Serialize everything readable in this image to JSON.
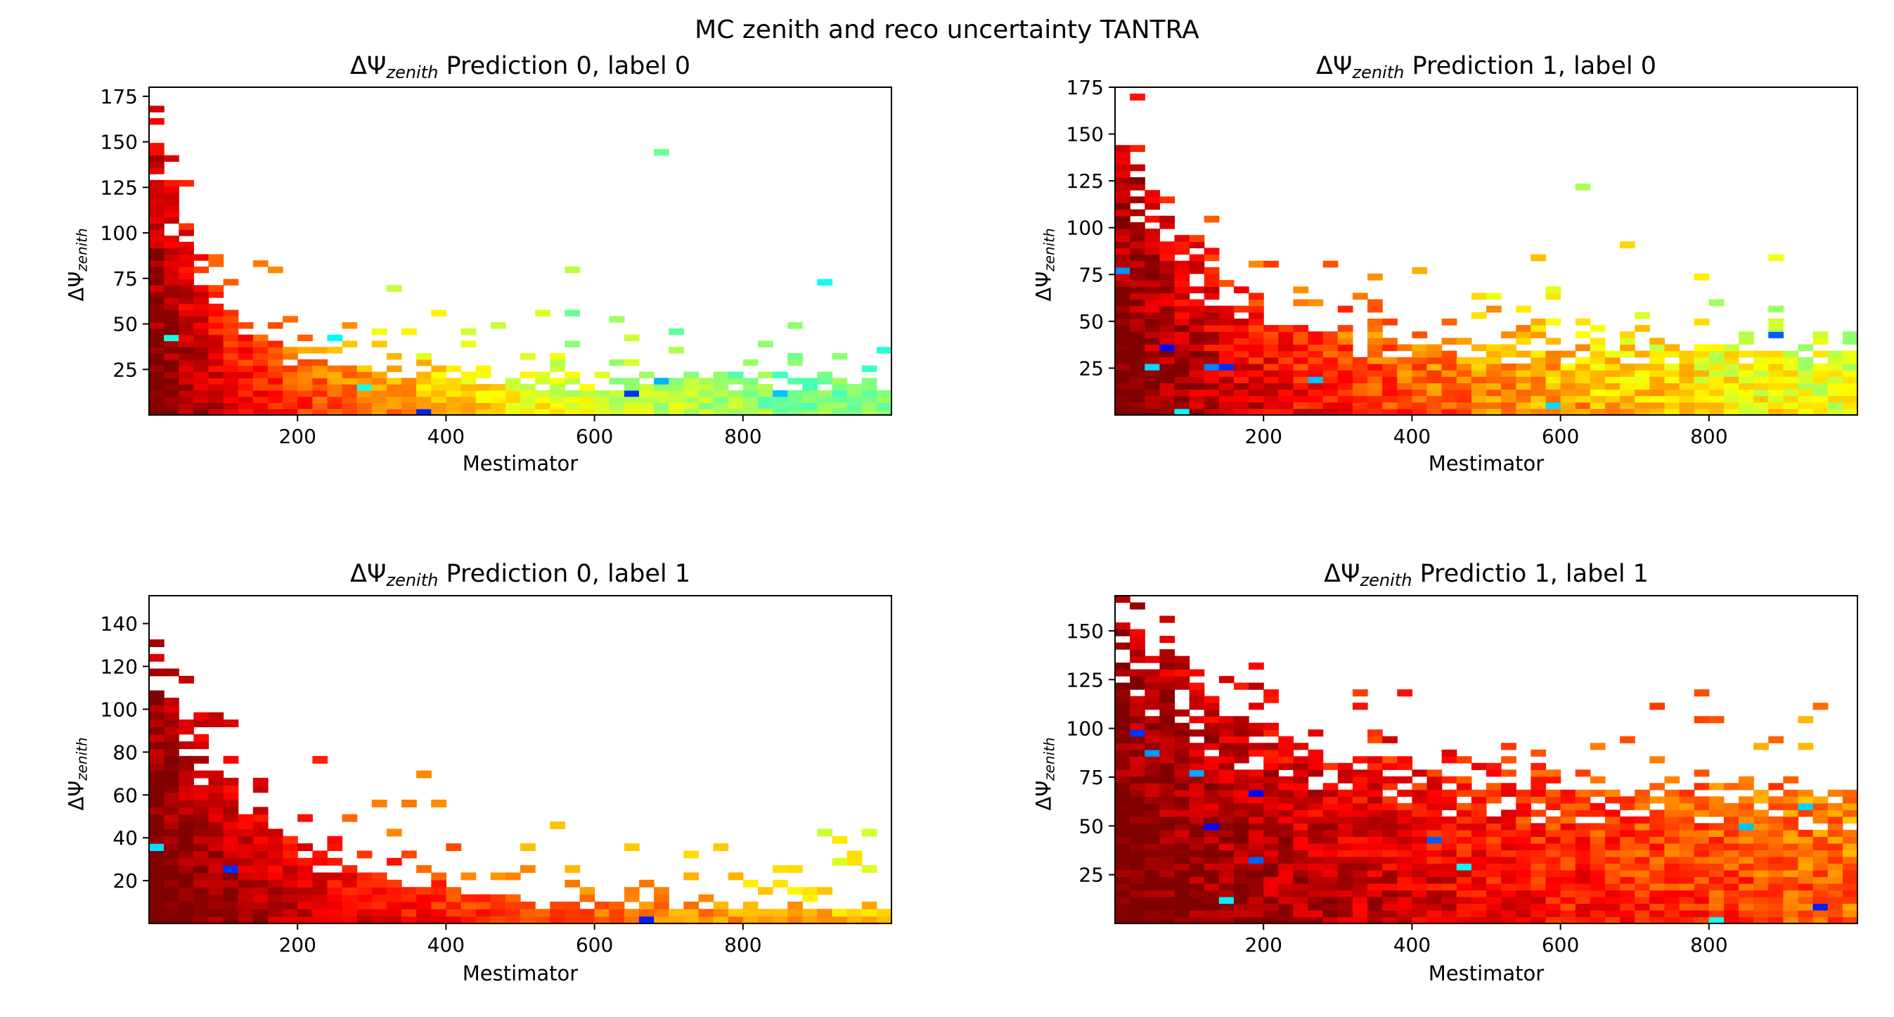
{
  "figure": {
    "suptitle": "MC zenith and reco uncertainty TANTRA",
    "title_prefix": "ΔΨ",
    "title_subscript": "zenith"
  },
  "chart_data": [
    {
      "type": "heatmap",
      "title": " Prediction 0, label 0",
      "xlabel": "Mestimator",
      "ylabel_prefix": "ΔΨ",
      "ylabel_subscript": "zenith",
      "xlim": [
        0,
        1000
      ],
      "ylim": [
        0,
        180
      ],
      "xticks": [
        200,
        400,
        600,
        800
      ],
      "yticks": [
        25,
        50,
        75,
        100,
        125,
        150,
        175
      ],
      "colormap": "jet",
      "grid": false,
      "decay": 0.0075,
      "slope": 0.22,
      "noise": 0.5,
      "ymaxcurve": 175,
      "ymincurve": 20,
      "seed": 11
    },
    {
      "type": "heatmap",
      "title": " Prediction 1, label 0",
      "xlabel": "Mestimator",
      "ylabel_prefix": "ΔΨ",
      "ylabel_subscript": "zenith",
      "xlim": [
        0,
        1000
      ],
      "ylim": [
        0,
        175
      ],
      "xticks": [
        200,
        400,
        600,
        800
      ],
      "yticks": [
        25,
        50,
        75,
        100,
        125,
        150,
        175
      ],
      "colormap": "jet",
      "grid": false,
      "decay": 0.0055,
      "slope": 0.18,
      "noise": 0.65,
      "ymaxcurve": 165,
      "ymincurve": 35,
      "seed": 23
    },
    {
      "type": "heatmap",
      "title": " Prediction 0, label 1",
      "xlabel": "Mestimator",
      "ylabel_prefix": "ΔΨ",
      "ylabel_subscript": "zenith",
      "xlim": [
        0,
        1000
      ],
      "ylim": [
        0,
        153
      ],
      "xticks": [
        200,
        400,
        600,
        800
      ],
      "yticks": [
        20,
        40,
        60,
        80,
        100,
        120,
        140
      ],
      "colormap": "jet",
      "grid": false,
      "decay": 0.0045,
      "slope": 0.16,
      "noise": 0.45,
      "ymaxcurve": 140,
      "ymincurve": 8,
      "seed": 37
    },
    {
      "type": "heatmap",
      "title": " Predictio 1, label 1",
      "xlabel": "Mestimator",
      "ylabel_prefix": "ΔΨ",
      "ylabel_subscript": "zenith",
      "xlim": [
        0,
        1000
      ],
      "ylim": [
        0,
        168
      ],
      "xticks": [
        200,
        400,
        600,
        800
      ],
      "yticks": [
        25,
        50,
        75,
        100,
        125,
        150
      ],
      "colormap": "jet",
      "grid": false,
      "decay": 0.0032,
      "slope": 0.14,
      "noise": 0.6,
      "ymaxcurve": 165,
      "ymincurve": 65,
      "seed": 53
    }
  ]
}
